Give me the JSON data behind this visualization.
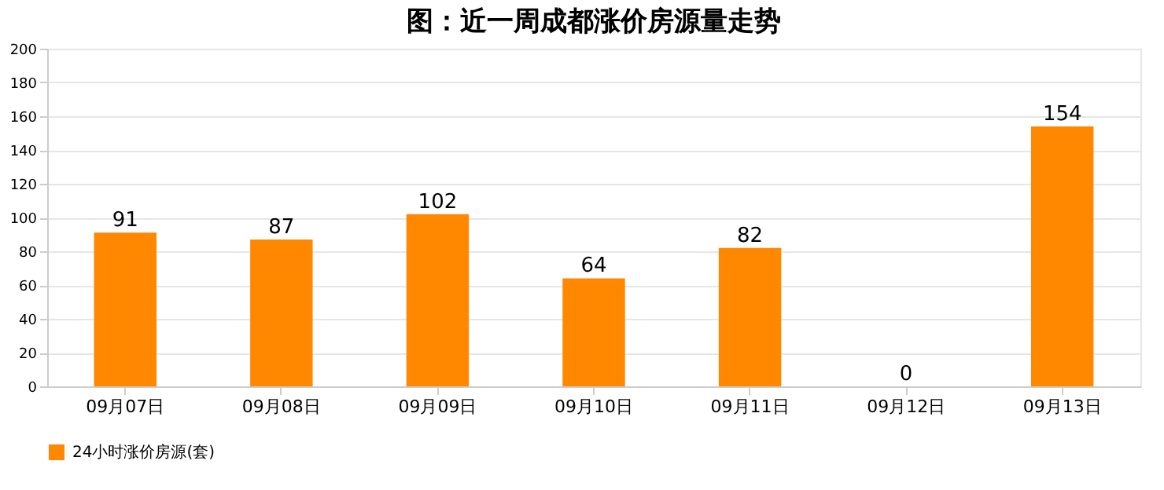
{
  "chart_data": {
    "type": "bar",
    "title": "图：近一周成都涨价房源量走势",
    "categories": [
      "09月07日",
      "09月08日",
      "09月09日",
      "09月10日",
      "09月11日",
      "09月12日",
      "09月13日"
    ],
    "series": [
      {
        "name": "24小时涨价房源(套)",
        "color": "#ff8800",
        "values": [
          91,
          87,
          102,
          64,
          82,
          0,
          154
        ]
      }
    ],
    "ylim": [
      0,
      200
    ],
    "yticks": [
      0,
      20,
      40,
      60,
      80,
      100,
      120,
      140,
      160,
      180,
      200
    ],
    "grid": "y",
    "data_labels": true,
    "legend": "bottom"
  }
}
